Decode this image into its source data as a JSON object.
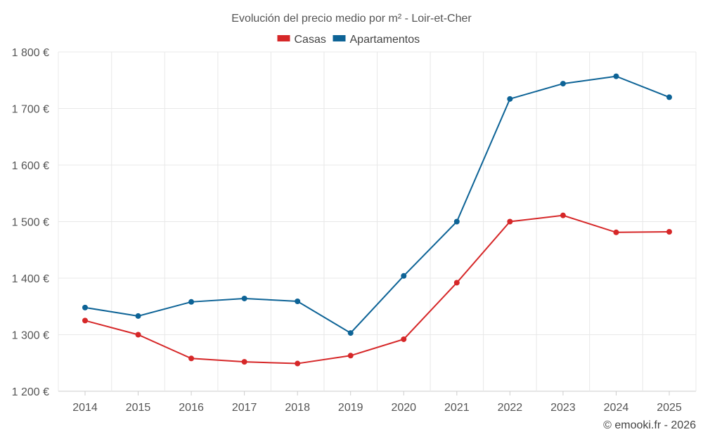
{
  "chart_data": {
    "type": "line",
    "title": "Evolución del precio medio por m² - Loir-et-Cher",
    "categories": [
      "2014",
      "2015",
      "2016",
      "2017",
      "2018",
      "2019",
      "2020",
      "2021",
      "2022",
      "2023",
      "2024",
      "2025"
    ],
    "series": [
      {
        "name": "Casas",
        "color": "#d62728",
        "values": [
          1325,
          1300,
          1258,
          1252,
          1249,
          1263,
          1292,
          1392,
          1500,
          1511,
          1481,
          1482
        ]
      },
      {
        "name": "Apartamentos",
        "color": "#0d6396",
        "values": [
          1348,
          1333,
          1358,
          1364,
          1359,
          1303,
          1404,
          1500,
          1717,
          1744,
          1757,
          1720
        ]
      }
    ],
    "ylim": [
      1200,
      1800
    ],
    "yticks": [
      1200,
      1300,
      1400,
      1500,
      1600,
      1700,
      1800
    ],
    "ytick_labels": [
      "1 200 €",
      "1 300 €",
      "1 400 €",
      "1 500 €",
      "1 600 €",
      "1 700 €",
      "1 800 €"
    ],
    "xlabel": "",
    "ylabel": "",
    "grid": true,
    "legend_position": "top-center"
  },
  "credit": "© emooki.fr - 2026"
}
